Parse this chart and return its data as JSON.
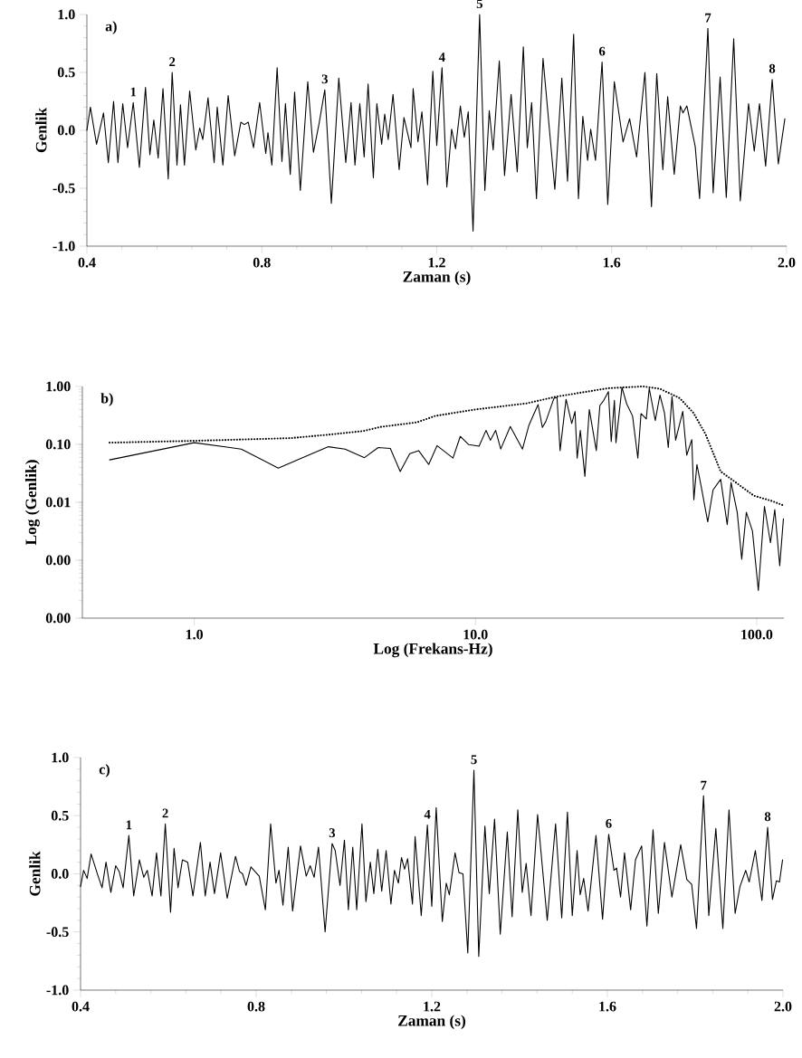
{
  "chart_data": [
    {
      "type": "line",
      "xlabel": "Zaman (s)",
      "ylabel": "Genlik",
      "xlim": [
        0.4,
        2.0
      ],
      "ylim": [
        -1.0,
        1.0
      ],
      "xticks": [
        {
          "value": 0.4,
          "label": "0.4"
        },
        {
          "value": 0.8,
          "label": "0.8"
        },
        {
          "value": 1.2,
          "label": "1.2"
        },
        {
          "value": 1.6,
          "label": "1.6"
        },
        {
          "value": 2.0,
          "label": "2.0"
        }
      ],
      "yticks": [
        {
          "value": -1.0,
          "label": "-1.0"
        },
        {
          "value": -0.5,
          "label": "-0.5"
        },
        {
          "value": 0.0,
          "label": "0.0"
        },
        {
          "value": 0.5,
          "label": "0.5"
        },
        {
          "value": 1.0,
          "label": "1.0"
        }
      ],
      "series": [
        {
          "color": "#000000",
          "line_style": "solid",
          "x": [
            0.4,
            0.408,
            0.422,
            0.438,
            0.449,
            0.461,
            0.471,
            0.482,
            0.493,
            0.506,
            0.52,
            0.534,
            0.544,
            0.553,
            0.563,
            0.574,
            0.586,
            0.595,
            0.606,
            0.614,
            0.623,
            0.635,
            0.649,
            0.658,
            0.665,
            0.677,
            0.691,
            0.698,
            0.711,
            0.723,
            0.738,
            0.752,
            0.76,
            0.769,
            0.781,
            0.795,
            0.809,
            0.814,
            0.823,
            0.835,
            0.846,
            0.854,
            0.865,
            0.875,
            0.888,
            0.905,
            0.918,
            0.931,
            0.944,
            0.959,
            0.976,
            0.992,
            1.004,
            1.013,
            1.024,
            1.034,
            1.043,
            1.055,
            1.063,
            1.074,
            1.081,
            1.089,
            1.1,
            1.114,
            1.125,
            1.141,
            1.146,
            1.157,
            1.166,
            1.179,
            1.191,
            1.2,
            1.212,
            1.223,
            1.234,
            1.243,
            1.254,
            1.263,
            1.272,
            1.283,
            1.298,
            1.31,
            1.32,
            1.329,
            1.343,
            1.355,
            1.37,
            1.384,
            1.398,
            1.407,
            1.417,
            1.428,
            1.443,
            1.47,
            1.486,
            1.499,
            1.513,
            1.524,
            1.534,
            1.545,
            1.552,
            1.563,
            1.578,
            1.591,
            1.606,
            1.626,
            1.641,
            1.657,
            1.676,
            1.691,
            1.703,
            1.717,
            1.728,
            1.743,
            1.757,
            1.763,
            1.772,
            1.791,
            1.801,
            1.82,
            1.832,
            1.848,
            1.862,
            1.879,
            1.894,
            1.913,
            1.926,
            1.938,
            1.952,
            1.967,
            1.981,
            1.996
          ],
          "values": [
            0.0,
            0.2,
            -0.12,
            0.15,
            -0.28,
            0.25,
            -0.28,
            0.23,
            -0.15,
            0.24,
            -0.32,
            0.37,
            -0.21,
            0.09,
            -0.24,
            0.36,
            -0.42,
            0.5,
            -0.3,
            0.22,
            -0.3,
            0.34,
            -0.17,
            0.02,
            -0.08,
            0.28,
            -0.28,
            0.2,
            -0.3,
            0.3,
            -0.22,
            0.07,
            0.05,
            0.07,
            -0.15,
            0.24,
            -0.2,
            -0.02,
            -0.3,
            0.54,
            -0.27,
            0.23,
            -0.38,
            0.33,
            -0.52,
            0.42,
            -0.19,
            0.06,
            0.35,
            -0.63,
            0.45,
            -0.28,
            0.24,
            -0.3,
            0.23,
            -0.23,
            0.4,
            -0.41,
            0.23,
            -0.12,
            0.14,
            -0.08,
            0.31,
            -0.34,
            0.11,
            -0.15,
            0.36,
            -0.1,
            0.16,
            -0.47,
            0.51,
            -0.13,
            0.54,
            -0.49,
            0.01,
            -0.16,
            0.21,
            -0.06,
            0.16,
            -0.87,
            1.0,
            -0.52,
            0.17,
            -0.17,
            0.6,
            -0.39,
            0.31,
            -0.36,
            0.72,
            -0.15,
            0.24,
            -0.59,
            0.62,
            -0.51,
            0.45,
            -0.44,
            0.83,
            -0.59,
            0.12,
            -0.26,
            0.01,
            -0.26,
            0.59,
            -0.64,
            0.42,
            -0.1,
            0.1,
            -0.23,
            0.5,
            -0.66,
            0.49,
            -0.34,
            0.29,
            -0.38,
            0.21,
            0.15,
            0.21,
            -0.14,
            -0.59,
            0.88,
            -0.54,
            0.46,
            -0.58,
            0.79,
            -0.61,
            0.23,
            -0.18,
            0.23,
            -0.31,
            0.44,
            -0.29,
            0.1
          ]
        }
      ],
      "annotations": [
        "a)",
        {
          "text": "1",
          "x": 0.506,
          "y": 0.24
        },
        {
          "text": "2",
          "x": 0.595,
          "y": 0.5
        },
        {
          "text": "3",
          "x": 0.944,
          "y": 0.35
        },
        {
          "text": "4",
          "x": 1.212,
          "y": 0.54
        },
        {
          "text": "5",
          "x": 1.298,
          "y": 1.0
        },
        {
          "text": "6",
          "x": 1.578,
          "y": 0.59
        },
        {
          "text": "7",
          "x": 1.82,
          "y": 0.88
        },
        {
          "text": "8",
          "x": 1.967,
          "y": 0.44
        }
      ]
    },
    {
      "type": "line",
      "xlabel": "Log (Frekans-Hz)",
      "ylabel": "Log (Genlik)",
      "log": "xy",
      "xlim": [
        0.4,
        125
      ],
      "ylim": [
        0.0001,
        1.0
      ],
      "xticks": [
        {
          "value": 1,
          "label": "1.0"
        },
        {
          "value": 10,
          "label": "10.0"
        },
        {
          "value": 100,
          "label": "100.0"
        }
      ],
      "yticks": [
        {
          "value": 0.0001,
          "label": "0.00"
        },
        {
          "value": 0.001,
          "label": "0.00"
        },
        {
          "value": 0.01,
          "label": "0.01"
        },
        {
          "value": 0.1,
          "label": "0.10"
        },
        {
          "value": 1.0,
          "label": "1.00"
        }
      ],
      "series": [
        {
          "color": "#000000",
          "line_style": "dotted",
          "x": [
            0.5,
            1.0,
            2.2,
            3.0,
            4.0,
            4.6,
            6.2,
            7.2,
            10,
            15.2,
            19.5,
            29.6,
            39.5,
            45.3,
            53.2,
            59.6,
            65.8,
            74.5,
            84.3,
            97.7,
            113.5,
            124
          ],
          "values": [
            0.107,
            0.115,
            0.128,
            0.147,
            0.17,
            0.2,
            0.24,
            0.31,
            0.4,
            0.51,
            0.67,
            0.93,
            1.0,
            0.91,
            0.63,
            0.35,
            0.15,
            0.034,
            0.022,
            0.013,
            0.0105,
            0.0089
          ]
        },
        {
          "color": "#000000",
          "line_style": "solid",
          "x": [
            0.5,
            1.0,
            1.47,
            1.99,
            3.0,
            3.44,
            4.03,
            4.51,
            4.98,
            5.4,
            5.84,
            6.28,
            6.82,
            7.3,
            8.32,
            8.83,
            9.47,
            10.3,
            10.9,
            11.3,
            11.8,
            12.3,
            13.3,
            14.7,
            15.5,
            16.7,
            17.3,
            17.8,
            19.0,
            19.5,
            20.0,
            21.0,
            22.0,
            22.6,
            23.0,
            23.6,
            24.5,
            25.4,
            26.9,
            27.7,
            28.6,
            29.7,
            30.4,
            31.2,
            31.6,
            33.2,
            34.5,
            36.2,
            37.8,
            38.8,
            40.5,
            41.5,
            43.6,
            45.3,
            47.0,
            48.5,
            50.0,
            51.5,
            54.6,
            56.4,
            58.8,
            59.8,
            61.3,
            63.4,
            67.0,
            70.0,
            74.5,
            78.6,
            81.1,
            85.3,
            88.5,
            91.9,
            96.6,
            101.4,
            106.6,
            112,
            116,
            120.8,
            124.5
          ],
          "values": [
            0.054,
            0.107,
            0.083,
            0.039,
            0.091,
            0.083,
            0.059,
            0.088,
            0.085,
            0.034,
            0.069,
            0.078,
            0.045,
            0.095,
            0.058,
            0.137,
            0.099,
            0.093,
            0.174,
            0.118,
            0.174,
            0.083,
            0.203,
            0.083,
            0.215,
            0.487,
            0.196,
            0.249,
            0.619,
            0.649,
            0.078,
            0.6,
            0.229,
            0.37,
            0.058,
            0.174,
            0.028,
            0.4,
            0.078,
            0.47,
            0.575,
            0.81,
            0.111,
            0.575,
            0.107,
            0.96,
            0.5,
            0.309,
            0.058,
            0.34,
            0.274,
            0.93,
            0.258,
            0.71,
            0.35,
            0.088,
            0.67,
            0.118,
            0.37,
            0.065,
            0.121,
            0.011,
            0.045,
            0.0196,
            0.0046,
            0.0164,
            0.0249,
            0.0041,
            0.022,
            0.0067,
            0.00104,
            0.0067,
            0.0032,
            0.0003,
            0.0085,
            0.002,
            0.0075,
            0.0008,
            0.0052
          ]
        }
      ],
      "annotations": [
        "b)"
      ]
    },
    {
      "type": "line",
      "xlabel": "Zaman (s)",
      "ylabel": "Genlik",
      "xlim": [
        0.4,
        2.0
      ],
      "ylim": [
        -1.0,
        1.0
      ],
      "xticks": [
        {
          "value": 0.4,
          "label": "0.4"
        },
        {
          "value": 0.8,
          "label": "0.8"
        },
        {
          "value": 1.2,
          "label": "1.2"
        },
        {
          "value": 1.6,
          "label": "1.6"
        },
        {
          "value": 2.0,
          "label": "2.0"
        }
      ],
      "yticks": [
        {
          "value": -1.0,
          "label": "-1.0"
        },
        {
          "value": -0.5,
          "label": "-0.5"
        },
        {
          "value": 0.0,
          "label": "0.0"
        },
        {
          "value": 0.5,
          "label": "0.5"
        },
        {
          "value": 1.0,
          "label": "1.0"
        }
      ],
      "series": [
        {
          "color": "#000000",
          "line_style": "solid",
          "x": [
            0.4,
            0.407,
            0.415,
            0.424,
            0.44,
            0.449,
            0.458,
            0.469,
            0.48,
            0.488,
            0.497,
            0.51,
            0.521,
            0.534,
            0.544,
            0.552,
            0.563,
            0.573,
            0.583,
            0.593,
            0.605,
            0.613,
            0.622,
            0.632,
            0.644,
            0.656,
            0.673,
            0.684,
            0.695,
            0.705,
            0.719,
            0.734,
            0.753,
            0.762,
            0.769,
            0.777,
            0.788,
            0.807,
            0.821,
            0.833,
            0.845,
            0.852,
            0.861,
            0.873,
            0.883,
            0.901,
            0.914,
            0.923,
            0.932,
            0.942,
            0.957,
            0.973,
            0.98,
            0.991,
            1.001,
            1.01,
            1.02,
            1.029,
            1.041,
            1.05,
            1.06,
            1.068,
            1.077,
            1.086,
            1.096,
            1.107,
            1.115,
            1.124,
            1.131,
            1.138,
            1.145,
            1.156,
            1.162,
            1.176,
            1.19,
            1.2,
            1.21,
            1.224,
            1.233,
            1.24,
            1.253,
            1.262,
            1.271,
            1.282,
            1.296,
            1.307,
            1.321,
            1.331,
            1.343,
            1.356,
            1.372,
            1.383,
            1.396,
            1.406,
            1.415,
            1.426,
            1.441,
            1.463,
            1.482,
            1.496,
            1.509,
            1.52,
            1.531,
            1.538,
            1.546,
            1.556,
            1.574,
            1.589,
            1.603,
            1.615,
            1.621,
            1.63,
            1.639,
            1.653,
            1.664,
            1.678,
            1.69,
            1.704,
            1.716,
            1.73,
            1.747,
            1.767,
            1.781,
            1.792,
            1.803,
            1.819,
            1.831,
            1.847,
            1.863,
            1.877,
            1.891,
            1.902,
            1.915,
            1.923,
            1.937,
            1.952,
            1.965,
            1.976,
            1.985,
            1.992,
            1.999
          ],
          "values": [
            -0.11,
            0.03,
            -0.04,
            0.17,
            -0.02,
            -0.12,
            0.1,
            -0.16,
            0.07,
            0.02,
            -0.12,
            0.33,
            -0.19,
            0.12,
            -0.03,
            0.03,
            -0.19,
            0.18,
            -0.19,
            0.43,
            -0.33,
            0.22,
            -0.12,
            0.12,
            0.1,
            -0.19,
            0.27,
            -0.19,
            0.1,
            -0.17,
            0.18,
            -0.21,
            0.15,
            0.02,
            0.0,
            -0.1,
            0.06,
            -0.02,
            -0.31,
            0.43,
            -0.08,
            0.03,
            -0.27,
            0.23,
            -0.32,
            0.24,
            -0.02,
            0.07,
            -0.03,
            0.23,
            -0.5,
            0.26,
            0.2,
            -0.1,
            0.29,
            -0.31,
            0.23,
            -0.31,
            0.43,
            -0.24,
            0.1,
            -0.17,
            0.21,
            -0.15,
            0.2,
            -0.26,
            0.03,
            -0.08,
            0.14,
            0.04,
            0.13,
            -0.26,
            0.32,
            -0.36,
            0.42,
            -0.28,
            0.57,
            -0.41,
            -0.08,
            -0.18,
            0.18,
            0.01,
            0.0,
            -0.68,
            0.89,
            -0.71,
            0.41,
            -0.17,
            0.47,
            -0.52,
            0.36,
            -0.37,
            0.55,
            -0.16,
            0.09,
            -0.36,
            0.51,
            -0.4,
            0.43,
            -0.38,
            0.53,
            -0.36,
            0.2,
            -0.18,
            -0.04,
            -0.32,
            0.33,
            -0.39,
            0.34,
            0.03,
            0.05,
            -0.2,
            0.18,
            -0.31,
            0.12,
            0.24,
            -0.45,
            0.38,
            -0.34,
            0.27,
            -0.2,
            0.25,
            -0.05,
            -0.09,
            -0.47,
            0.67,
            -0.36,
            0.39,
            -0.47,
            0.55,
            -0.34,
            -0.11,
            0.03,
            -0.07,
            0.2,
            -0.23,
            0.4,
            -0.22,
            -0.06,
            -0.07,
            0.12
          ]
        }
      ],
      "annotations": [
        "c)",
        {
          "text": "1",
          "x": 0.51,
          "y": 0.33
        },
        {
          "text": "2",
          "x": 0.593,
          "y": 0.43
        },
        {
          "text": "3",
          "x": 0.973,
          "y": 0.26
        },
        {
          "text": "4",
          "x": 1.19,
          "y": 0.42
        },
        {
          "text": "5",
          "x": 1.296,
          "y": 0.89
        },
        {
          "text": "6",
          "x": 1.603,
          "y": 0.34
        },
        {
          "text": "7",
          "x": 1.819,
          "y": 0.67
        },
        {
          "text": "8",
          "x": 1.965,
          "y": 0.4
        }
      ]
    }
  ]
}
